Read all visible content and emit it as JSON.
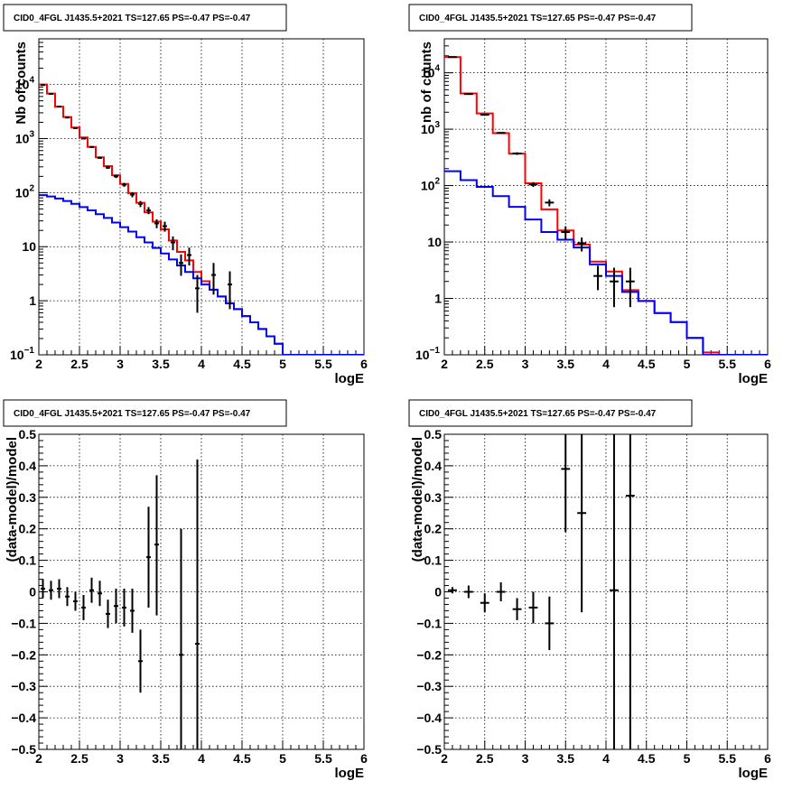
{
  "colors": {
    "data": "#000000",
    "total_model": "#ff0000",
    "component_model": "#0000ff",
    "grid": "#000000"
  },
  "chart_data": [
    {
      "type": "line",
      "title": "CID0_4FGL J1435.5+2021 TS=127.65 PS=-0.47 PS=-0.47",
      "xlabel": "logE",
      "ylabel": "Nb of counts",
      "xlim": [
        2,
        6
      ],
      "ylim": [
        0.1,
        70000
      ],
      "yscale": "log",
      "grid": true,
      "xticks": [
        "2",
        "2.5",
        "3",
        "3.5",
        "4",
        "4.5",
        "5",
        "5.5",
        "6"
      ],
      "yticks": [
        {
          "value": 0.1,
          "label": "10",
          "exp": "−1"
        },
        {
          "value": 1,
          "label": "1",
          "exp": ""
        },
        {
          "value": 10,
          "label": "10",
          "exp": ""
        },
        {
          "value": 100,
          "label": "10",
          "exp": "2"
        },
        {
          "value": 1000,
          "label": "10",
          "exp": "3"
        },
        {
          "value": 10000,
          "label": "10",
          "exp": "4"
        }
      ],
      "bin_edges": [
        2.0,
        2.1,
        2.2,
        2.3,
        2.4,
        2.5,
        2.6,
        2.7,
        2.8,
        2.9,
        3.0,
        3.1,
        3.2,
        3.3,
        3.4,
        3.5,
        3.6,
        3.7,
        3.8,
        3.9,
        4.0,
        4.1,
        4.2,
        4.3,
        4.4,
        4.5,
        4.6,
        4.7,
        4.8,
        4.9,
        5.0,
        5.1,
        5.2,
        5.3,
        5.4,
        5.5,
        5.6,
        5.7,
        5.8,
        5.9,
        6.0
      ],
      "series": [
        {
          "role": "total_model",
          "style": "step",
          "values": [
            10000,
            6800,
            3900,
            2500,
            1600,
            1050,
            700,
            450,
            310,
            210,
            145,
            98,
            65,
            43,
            29,
            21,
            13,
            8,
            5.6,
            3.4,
            2.3,
            1.6,
            1.2,
            0.9,
            0.7,
            0.52,
            0.4,
            0.3,
            0.22,
            0.16,
            0.1,
            0.1,
            0.1,
            0.1,
            0.1,
            0.1,
            0.1,
            0.1,
            0.1,
            0.1
          ]
        },
        {
          "role": "component_model",
          "style": "step",
          "values": [
            90,
            85,
            78,
            70,
            62,
            54,
            47,
            40,
            34,
            28,
            23,
            19,
            15,
            12,
            9.5,
            7.5,
            5.8,
            4.5,
            3.4,
            2.6,
            2.0,
            1.6,
            1.2,
            0.9,
            0.7,
            0.52,
            0.4,
            0.3,
            0.22,
            0.16,
            0.1,
            0.1,
            0.1,
            0.1,
            0.1,
            0.1,
            0.1,
            0.1,
            0.1,
            0.1
          ]
        },
        {
          "role": "data",
          "style": "errorbar",
          "x": [
            2.05,
            2.15,
            2.25,
            2.35,
            2.45,
            2.55,
            2.65,
            2.75,
            2.85,
            2.95,
            3.05,
            3.15,
            3.25,
            3.35,
            3.45,
            3.55,
            3.65,
            3.75,
            3.85,
            3.95,
            4.15,
            4.35
          ],
          "y": [
            9800,
            6700,
            3900,
            2450,
            1560,
            1000,
            700,
            440,
            290,
            200,
            140,
            92,
            62,
            47,
            27,
            24,
            12,
            5,
            7,
            1.7,
            3,
            2
          ],
          "ylo": [
            9600,
            6550,
            3840,
            2400,
            1520,
            970,
            675,
            420,
            275,
            186,
            128,
            82,
            54,
            40,
            22,
            19,
            8.6,
            2.9,
            4.5,
            0.6,
            1.3,
            0.7
          ],
          "yhi": [
            10000,
            6850,
            3960,
            2500,
            1600,
            1030,
            725,
            460,
            307,
            214,
            152,
            102,
            70,
            54,
            32,
            29,
            15.5,
            7.2,
            9.6,
            3,
            5,
            3.5
          ]
        }
      ]
    },
    {
      "type": "line",
      "title": "CID0_4FGL J1435.5+2021 TS=127.65 PS=-0.47 PS=-0.47",
      "xlabel": "logE",
      "ylabel": "nb of counts",
      "xlim": [
        2,
        6
      ],
      "ylim": [
        0.1,
        40000
      ],
      "yscale": "log",
      "grid": true,
      "xticks": [
        "2",
        "2.5",
        "3",
        "3.5",
        "4",
        "4.5",
        "5",
        "5.5",
        "6"
      ],
      "yticks": [
        {
          "value": 0.1,
          "label": "10",
          "exp": "−1"
        },
        {
          "value": 1,
          "label": "1",
          "exp": ""
        },
        {
          "value": 10,
          "label": "10",
          "exp": ""
        },
        {
          "value": 100,
          "label": "10",
          "exp": "2"
        },
        {
          "value": 1000,
          "label": "10",
          "exp": "3"
        },
        {
          "value": 10000,
          "label": "10",
          "exp": "4"
        }
      ],
      "bin_edges": [
        2.0,
        2.2,
        2.4,
        2.6,
        2.8,
        3.0,
        3.2,
        3.4,
        3.6,
        3.8,
        4.0,
        4.2,
        4.4,
        4.6,
        4.8,
        5.0,
        5.2,
        5.4,
        5.6,
        5.8,
        6.0
      ],
      "series": [
        {
          "role": "total_model",
          "style": "step",
          "values": [
            19000,
            4300,
            1900,
            850,
            370,
            110,
            38,
            16,
            9,
            4.5,
            3,
            1.4,
            0.9,
            0.55,
            0.38,
            0.2,
            0.11,
            0.1,
            0.1,
            0.1
          ]
        },
        {
          "role": "component_model",
          "style": "step",
          "values": [
            180,
            125,
            95,
            65,
            42,
            25,
            15,
            11,
            8,
            4,
            2.5,
            1.3,
            0.9,
            0.55,
            0.38,
            0.2,
            0.1,
            0.1,
            0.1,
            0.1
          ]
        },
        {
          "role": "data",
          "style": "errorbar",
          "x": [
            2.1,
            2.3,
            2.5,
            2.7,
            2.9,
            3.1,
            3.3,
            3.5,
            3.7,
            3.9,
            4.1,
            4.3
          ],
          "y": [
            19000,
            4200,
            1800,
            860,
            370,
            105,
            50,
            15,
            9.5,
            2.5,
            2,
            2
          ],
          "ylo": [
            18860,
            4140,
            1760,
            830,
            350,
            95,
            43,
            11,
            6.8,
            1.4,
            0.7,
            0.7
          ],
          "yhi": [
            19140,
            4260,
            1840,
            890,
            390,
            115,
            57,
            19,
            12,
            3.8,
            3.5,
            3.5
          ]
        }
      ]
    },
    {
      "type": "scatter",
      "title": "CID0_4FGL J1435.5+2021 TS=127.65 PS=-0.47 PS=-0.47",
      "xlabel": "logE",
      "ylabel": "(data-model)/model",
      "xlim": [
        2,
        6
      ],
      "ylim": [
        -0.5,
        0.5
      ],
      "yscale": "linear",
      "grid": true,
      "xticks": [
        "2",
        "2.5",
        "3",
        "3.5",
        "4",
        "4.5",
        "5",
        "5.5",
        "6"
      ],
      "yticks": [
        {
          "value": -0.5,
          "label": "−0.5"
        },
        {
          "value": -0.4,
          "label": "−0.4"
        },
        {
          "value": -0.3,
          "label": "−0.3"
        },
        {
          "value": -0.2,
          "label": "−0.2"
        },
        {
          "value": -0.1,
          "label": "−0.1"
        },
        {
          "value": 0,
          "label": "0"
        },
        {
          "value": 0.1,
          "label": "0.1"
        },
        {
          "value": 0.2,
          "label": "0.2"
        },
        {
          "value": 0.3,
          "label": "0.3"
        },
        {
          "value": 0.4,
          "label": "0.4"
        },
        {
          "value": 0.5,
          "label": "0.5"
        }
      ],
      "series": [
        {
          "role": "data",
          "style": "errorbar",
          "xerr": 0.05,
          "x": [
            2.05,
            2.15,
            2.25,
            2.35,
            2.45,
            2.55,
            2.65,
            2.75,
            2.85,
            2.95,
            3.05,
            3.15,
            3.25,
            3.35,
            3.45,
            3.75,
            3.95
          ],
          "y": [
            0.01,
            0.005,
            0.01,
            -0.015,
            -0.03,
            -0.05,
            0.005,
            -0.005,
            -0.07,
            -0.045,
            -0.05,
            -0.06,
            -0.22,
            0.11,
            0.15,
            -0.2,
            -0.165
          ],
          "ylo": [
            -0.02,
            -0.025,
            -0.02,
            -0.045,
            -0.06,
            -0.09,
            -0.035,
            -0.045,
            -0.115,
            -0.1,
            -0.11,
            -0.13,
            -0.32,
            -0.05,
            -0.075,
            -0.5,
            -0.5
          ],
          "yhi": [
            0.04,
            0.035,
            0.04,
            0.015,
            0.0,
            -0.01,
            0.045,
            0.035,
            -0.025,
            0.01,
            0.01,
            0.01,
            -0.12,
            0.27,
            0.37,
            0.2,
            0.42
          ]
        }
      ]
    },
    {
      "type": "scatter",
      "title": "CID0_4FGL J1435.5+2021 TS=127.65 PS=-0.47 PS=-0.47",
      "xlabel": "logE",
      "ylabel": "(data-model)/model",
      "xlim": [
        2,
        6
      ],
      "ylim": [
        -0.5,
        0.5
      ],
      "yscale": "linear",
      "grid": true,
      "xticks": [
        "2",
        "2.5",
        "3",
        "3.5",
        "4",
        "4.5",
        "5",
        "5.5",
        "6"
      ],
      "yticks": [
        {
          "value": -0.5,
          "label": "−0.5"
        },
        {
          "value": -0.4,
          "label": "−0.4"
        },
        {
          "value": -0.3,
          "label": "−0.3"
        },
        {
          "value": -0.2,
          "label": "−0.2"
        },
        {
          "value": -0.1,
          "label": "−0.1"
        },
        {
          "value": 0,
          "label": "0"
        },
        {
          "value": 0.1,
          "label": "0.1"
        },
        {
          "value": 0.2,
          "label": "0.2"
        },
        {
          "value": 0.3,
          "label": "0.3"
        },
        {
          "value": 0.4,
          "label": "0.4"
        },
        {
          "value": 0.5,
          "label": "0.5"
        }
      ],
      "series": [
        {
          "role": "data",
          "style": "errorbar",
          "xerr": 0.1,
          "x": [
            2.1,
            2.3,
            2.5,
            2.7,
            2.9,
            3.1,
            3.3,
            3.5,
            3.7,
            4.1,
            4.3
          ],
          "y": [
            0.005,
            0.0,
            -0.035,
            0.0,
            -0.055,
            -0.05,
            -0.1,
            0.39,
            0.25,
            0.005,
            0.305
          ],
          "ylo": [
            -0.005,
            -0.02,
            -0.065,
            -0.03,
            -0.09,
            -0.1,
            -0.185,
            0.19,
            -0.065,
            -0.5,
            -0.5
          ],
          "yhi": [
            0.015,
            0.02,
            -0.005,
            0.03,
            -0.02,
            0.0,
            -0.015,
            0.5,
            0.5,
            0.5,
            0.5
          ]
        }
      ]
    }
  ]
}
